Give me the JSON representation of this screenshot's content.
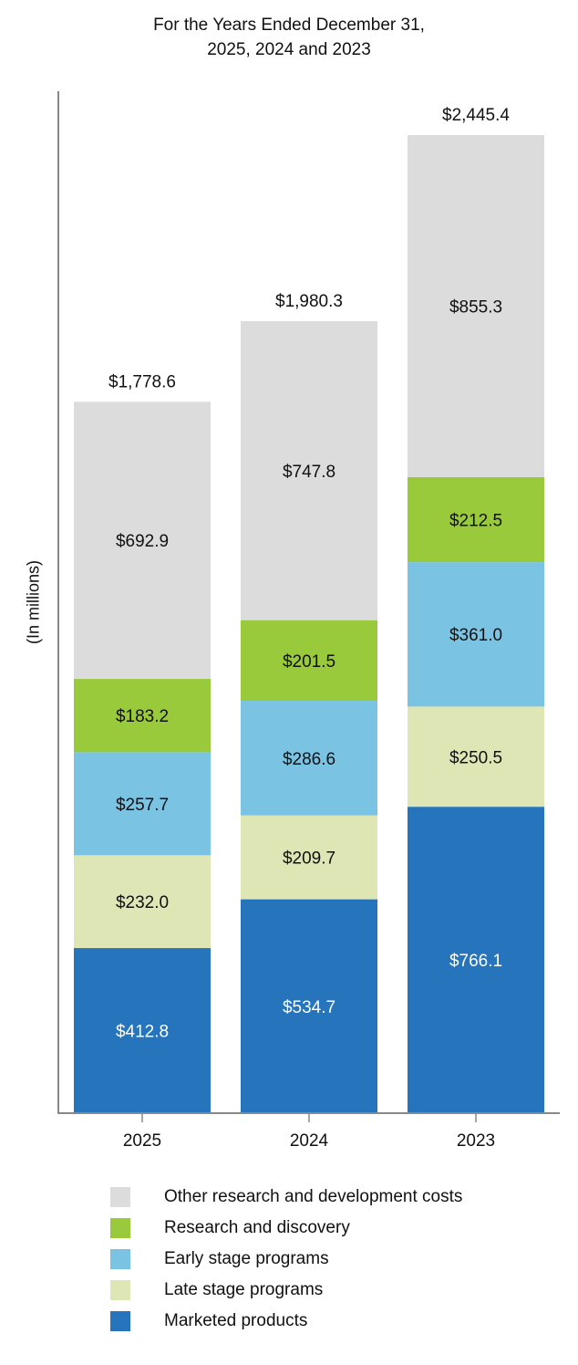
{
  "chart_data": {
    "type": "bar",
    "stacked": true,
    "title": "For the Years Ended December 31,",
    "subtitle": "2025, 2024 and 2023",
    "ylabel": "(In millions)",
    "xlabel": "",
    "categories": [
      "2025",
      "2024",
      "2023"
    ],
    "totals": [
      "$1,778.6",
      "$1,980.3",
      "$2,445.4"
    ],
    "ylim": [
      0,
      2445.4
    ],
    "legend_position": "bottom",
    "series": [
      {
        "name": "Marketed products",
        "color": "#2574bc",
        "label_color": "#ffffff",
        "values": [
          412.8,
          534.7,
          766.1
        ],
        "labels": [
          "$412.8",
          "$534.7",
          "$766.1"
        ]
      },
      {
        "name": "Late stage programs",
        "color": "#dde6b4",
        "label_color": "#111111",
        "values": [
          232.0,
          209.7,
          250.5
        ],
        "labels": [
          "$232.0",
          "$209.7",
          "$250.5"
        ]
      },
      {
        "name": "Early stage programs",
        "color": "#7bc3e2",
        "label_color": "#111111",
        "values": [
          257.7,
          286.6,
          361.0
        ],
        "labels": [
          "$257.7",
          "$286.6",
          "$361.0"
        ]
      },
      {
        "name": "Research and discovery",
        "color": "#98ca3c",
        "label_color": "#111111",
        "values": [
          183.2,
          201.5,
          212.5
        ],
        "labels": [
          "$183.2",
          "$201.5",
          "$212.5"
        ]
      },
      {
        "name": "Other research and development costs",
        "color": "#dcdcdc",
        "label_color": "#111111",
        "values": [
          692.9,
          747.8,
          855.3
        ],
        "labels": [
          "$692.9",
          "$747.8",
          "$855.3"
        ]
      }
    ],
    "legend_order": [
      4,
      3,
      2,
      1,
      0
    ]
  }
}
